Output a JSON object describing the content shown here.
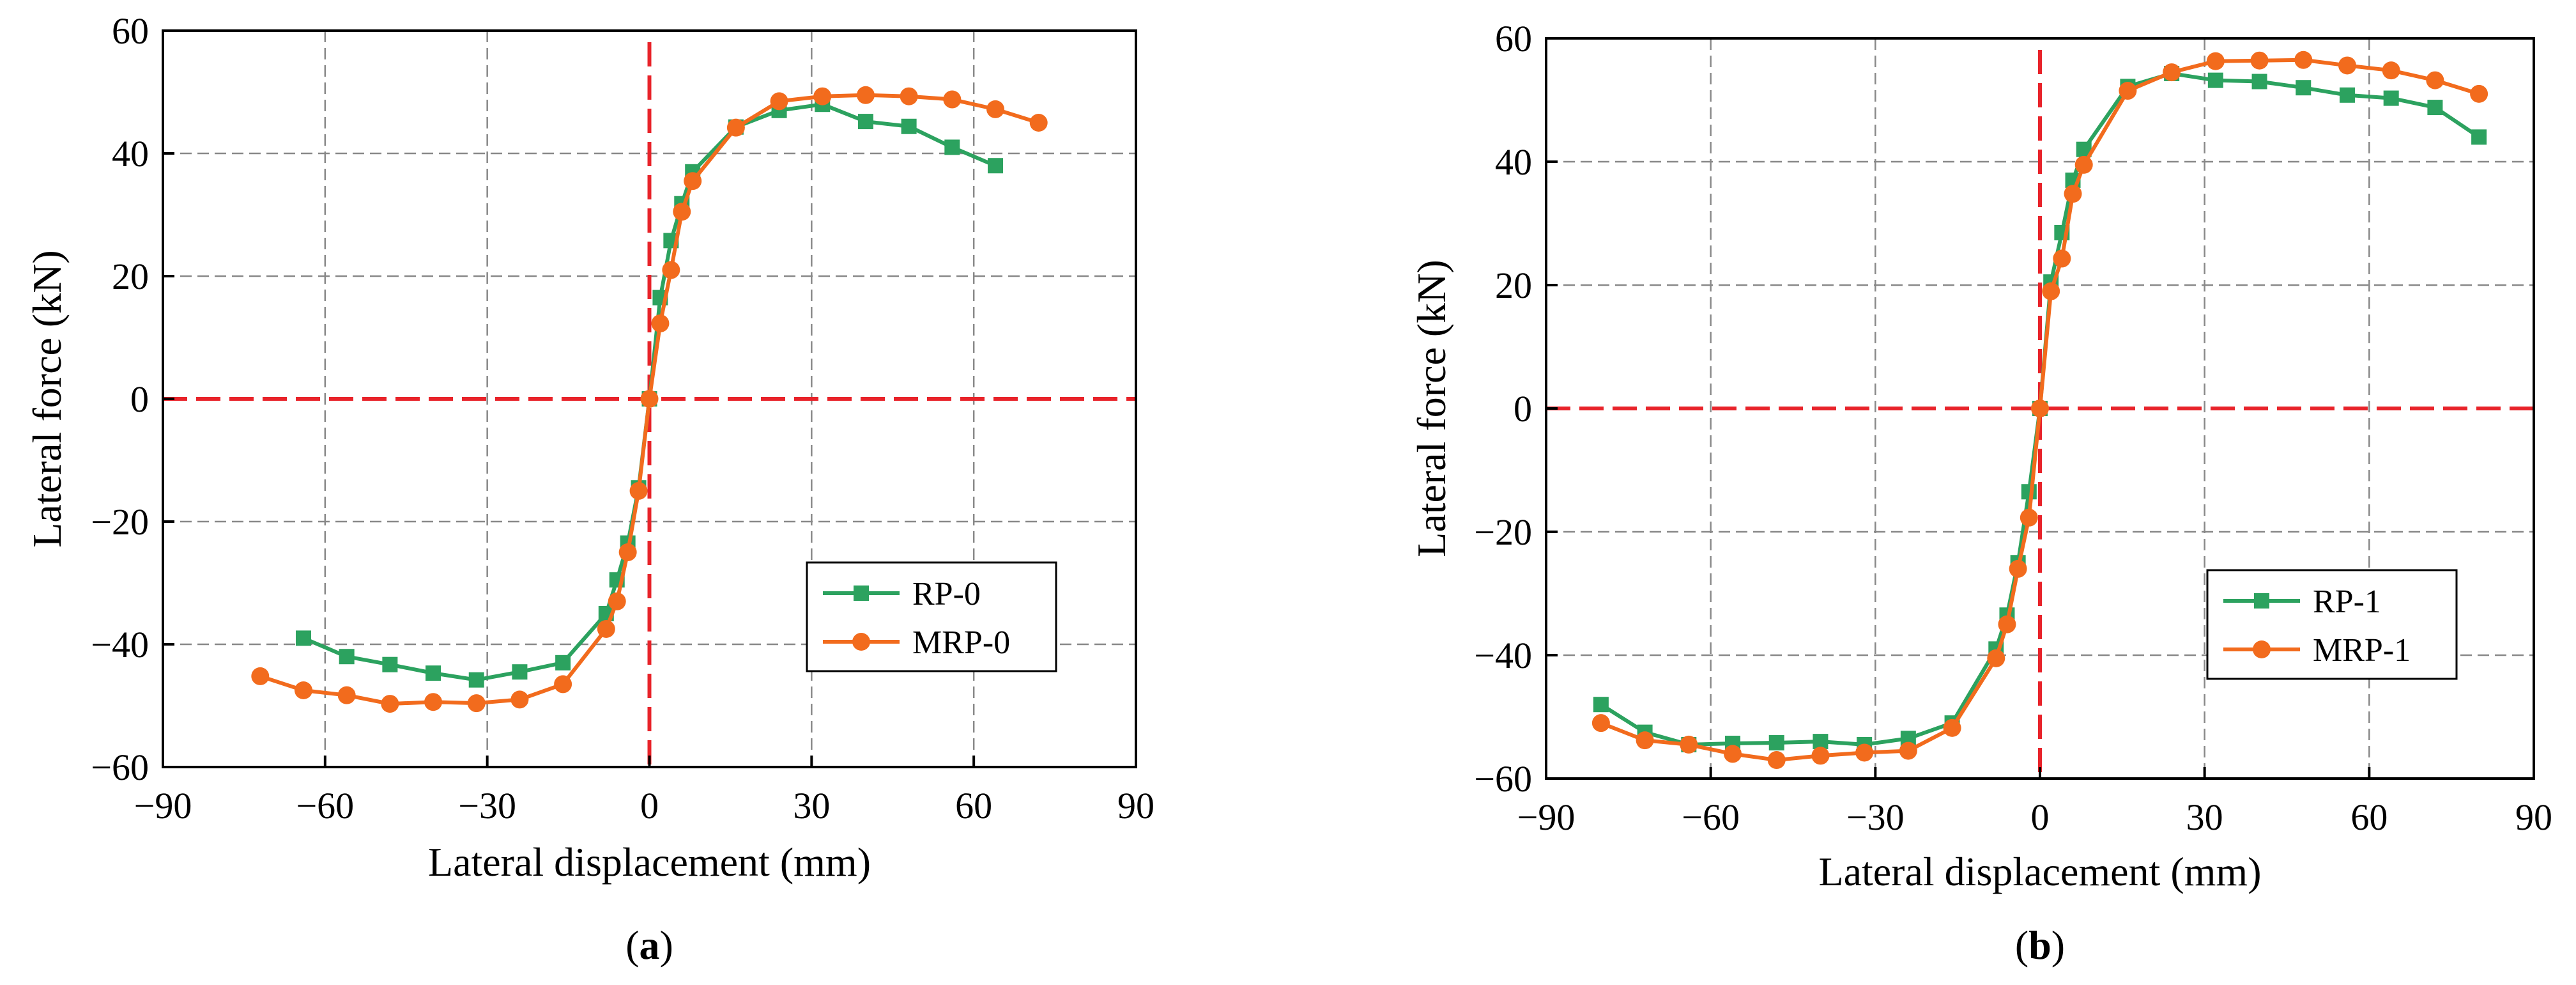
{
  "colors": {
    "series1": "#2ca25f",
    "series2": "#f26b1d",
    "zero_line": "#e8232a",
    "grid": "#888888",
    "axis": "#000000"
  },
  "chart_data": [
    {
      "type": "line",
      "panel_label": "a",
      "xlabel": "Lateral displacement (mm)",
      "ylabel": "Lateral force (kN)",
      "xlim": [
        -90,
        90
      ],
      "ylim": [
        -60,
        60
      ],
      "xticks": [
        -90,
        -60,
        -30,
        0,
        30,
        60,
        90
      ],
      "yticks": [
        -60,
        -40,
        -20,
        0,
        20,
        40,
        60
      ],
      "xtick_labels": [
        "−90",
        "−60",
        "−30",
        "0",
        "30",
        "60",
        "90"
      ],
      "ytick_labels": [
        "−60",
        "−40",
        "−20",
        "0",
        "20",
        "40",
        "60"
      ],
      "grid": true,
      "legend_position": "lower-right",
      "series": [
        {
          "name": "RP-0",
          "marker": "square",
          "x": [
            -64,
            -56,
            -48,
            -40,
            -32,
            -24,
            -16,
            -8,
            -6,
            -4,
            -2,
            0,
            2,
            4,
            6,
            8,
            16,
            24,
            32,
            40,
            48,
            56,
            64
          ],
          "y": [
            -39,
            -42,
            -43.3,
            -44.7,
            -45.8,
            -44.5,
            -43,
            -35,
            -29.5,
            -23.5,
            -14.5,
            0,
            16.5,
            25.8,
            31.8,
            37,
            44.3,
            47,
            48,
            45.2,
            44.4,
            41,
            38
          ]
        },
        {
          "name": "MRP-0",
          "marker": "circle",
          "x": [
            -72,
            -64,
            -56,
            -48,
            -40,
            -32,
            -24,
            -16,
            -8,
            -6,
            -4,
            -2,
            0,
            2,
            4,
            6,
            8,
            16,
            24,
            32,
            40,
            48,
            56,
            64,
            72
          ],
          "y": [
            -45.2,
            -47.5,
            -48.3,
            -49.7,
            -49.4,
            -49.6,
            -49,
            -46.5,
            -37.5,
            -33,
            -25,
            -15,
            0,
            12.3,
            21,
            30.5,
            35.5,
            44.2,
            48.5,
            49.3,
            49.5,
            49.3,
            48.8,
            47.2,
            45
          ]
        }
      ]
    },
    {
      "type": "line",
      "panel_label": "b",
      "xlabel": "Lateral displacement (mm)",
      "ylabel": "Lateral force (kN)",
      "xlim": [
        -90,
        90
      ],
      "ylim": [
        -60,
        60
      ],
      "xticks": [
        -90,
        -60,
        -30,
        0,
        30,
        60,
        90
      ],
      "yticks": [
        -60,
        -40,
        -20,
        0,
        20,
        40,
        60
      ],
      "xtick_labels": [
        "−90",
        "−60",
        "−30",
        "0",
        "30",
        "60",
        "90"
      ],
      "ytick_labels": [
        "−60",
        "−40",
        "−20",
        "0",
        "20",
        "40",
        "60"
      ],
      "grid": true,
      "legend_position": "lower-right",
      "series": [
        {
          "name": "RP-1",
          "marker": "square",
          "x": [
            -80,
            -72,
            -64,
            -56,
            -48,
            -40,
            -32,
            -24,
            -16,
            -8,
            -6,
            -4,
            -2,
            0,
            2,
            4,
            6,
            8,
            16,
            24,
            32,
            40,
            48,
            56,
            64,
            72,
            80
          ],
          "y": [
            -48,
            -52.5,
            -54.5,
            -54.3,
            -54.2,
            -54,
            -54.5,
            -53.5,
            -51,
            -39,
            -33.5,
            -25,
            -13.5,
            0,
            20.5,
            28.5,
            37,
            42,
            52.2,
            54.3,
            53.2,
            53,
            52,
            50.8,
            50.3,
            48.8,
            44
          ]
        },
        {
          "name": "MRP-1",
          "marker": "circle",
          "x": [
            -80,
            -72,
            -64,
            -56,
            -48,
            -40,
            -32,
            -24,
            -16,
            -8,
            -6,
            -4,
            -2,
            0,
            2,
            4,
            6,
            8,
            16,
            24,
            32,
            40,
            48,
            56,
            64,
            72,
            80
          ],
          "y": [
            -51,
            -53.8,
            -54.5,
            -56,
            -57,
            -56.3,
            -55.8,
            -55.5,
            -51.8,
            -40.5,
            -35,
            -26,
            -17.7,
            0,
            19,
            24.3,
            34.8,
            39.5,
            51.5,
            54.5,
            56.3,
            56.4,
            56.5,
            55.6,
            54.8,
            53.2,
            51
          ]
        }
      ]
    }
  ]
}
